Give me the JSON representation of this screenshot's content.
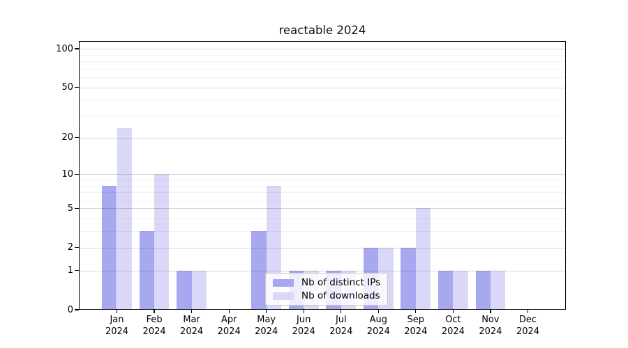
{
  "chart_data": {
    "type": "bar",
    "title": "reactable 2024",
    "categories": [
      "Jan",
      "Feb",
      "Mar",
      "Apr",
      "May",
      "Jun",
      "Jul",
      "Aug",
      "Sep",
      "Oct",
      "Nov",
      "Dec"
    ],
    "category_year": "2024",
    "series": [
      {
        "name": "Nb of distinct IPs",
        "color": "#a8a8f0",
        "values": [
          8,
          3,
          1,
          0,
          3,
          1,
          1,
          2,
          2,
          1,
          1,
          0
        ]
      },
      {
        "name": "Nb of downloads",
        "color": "#d9d9f7",
        "values": [
          24,
          10,
          1,
          0,
          8,
          1,
          1,
          2,
          5,
          1,
          1,
          0
        ]
      }
    ],
    "yscale": "log1p",
    "ylim": [
      0,
      113
    ],
    "major_yticks": [
      0,
      1,
      2,
      5,
      10,
      20,
      50,
      100
    ],
    "minor_yticks": [
      3,
      4,
      6,
      7,
      8,
      9,
      30,
      40,
      60,
      70,
      80,
      90
    ],
    "grid": "major-and-minor, drawn over bars",
    "legend_position": "bottom-center-inside"
  },
  "colors": {
    "background": "#ffffff",
    "spine": "#000000",
    "grid_major": "rgba(0,0,0,0.16)",
    "grid_minor": "rgba(0,0,0,0.05)"
  }
}
